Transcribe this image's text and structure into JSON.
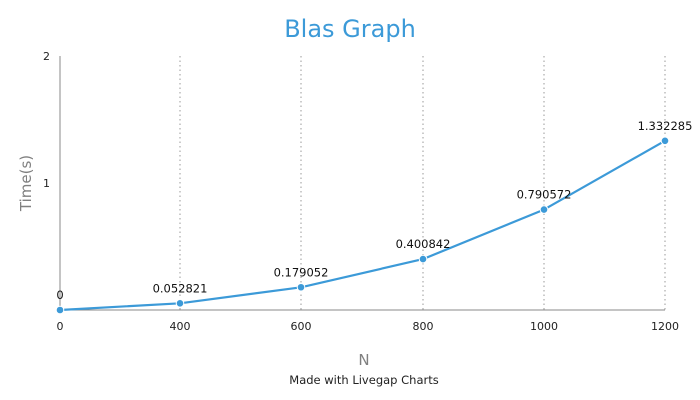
{
  "chart_data": {
    "type": "line",
    "title": "Blas Graph",
    "xlabel": "N",
    "ylabel": "Time(s)",
    "x": [
      0,
      400,
      600,
      800,
      1000,
      1200
    ],
    "series": [
      {
        "values": [
          0,
          0.052821,
          0.179052,
          0.400842,
          0.790572,
          1.332285
        ]
      }
    ],
    "data_labels": [
      "0",
      "0.052821",
      "0.179052",
      "0.400842",
      "0.790572",
      "1.332285"
    ],
    "x_tick_labels": [
      "0",
      "400",
      "600",
      "800",
      "1000",
      "1200"
    ],
    "y_ticks": [
      1,
      2
    ],
    "y_tick_labels": [
      "1",
      "2"
    ],
    "ylim": [
      0,
      2
    ],
    "grid": "vertical dotted",
    "legend": "none",
    "credit": "Made with Livegap Charts",
    "colors": {
      "series": "#3c9ad8",
      "title": "#3c9ad8",
      "axis_title": "#808080",
      "grid": "#9a9a9a",
      "axis": "#888888"
    }
  }
}
